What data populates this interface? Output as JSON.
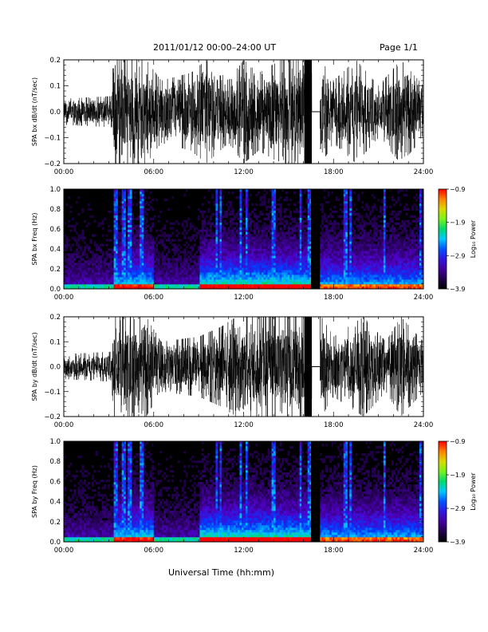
{
  "header": {
    "title": "2011/01/12  00:00–24:00 UT",
    "page": "Page 1/1"
  },
  "xlabel": "Universal Time (hh:mm)",
  "chart_data": [
    {
      "type": "line",
      "ylabel": "SPA bx dB/dt (nT/sec)",
      "xlim": [
        0,
        24
      ],
      "ylim": [
        -0.2,
        0.2
      ],
      "xticks": [
        "00:00",
        "06:00",
        "12:00",
        "18:00",
        "24:00"
      ],
      "yticks": [
        "−0.2",
        "−0.1",
        "0.0",
        "0.1",
        "0.2"
      ],
      "data_gap": [
        16.55,
        17.1
      ],
      "envelope": [
        {
          "x": 0,
          "amp": 0.05
        },
        {
          "x": 3.2,
          "amp": 0.06
        },
        {
          "x": 3.3,
          "amp": 0.2
        },
        {
          "x": 5.5,
          "amp": 0.2
        },
        {
          "x": 6.5,
          "amp": 0.12
        },
        {
          "x": 8.5,
          "amp": 0.15
        },
        {
          "x": 9.5,
          "amp": 0.2
        },
        {
          "x": 11.0,
          "amp": 0.12
        },
        {
          "x": 12.0,
          "amp": 0.2
        },
        {
          "x": 13.0,
          "amp": 0.15
        },
        {
          "x": 14.5,
          "amp": 0.2
        },
        {
          "x": 16.5,
          "amp": 0.2
        },
        {
          "x": 17.2,
          "amp": 0.2
        },
        {
          "x": 18.0,
          "amp": 0.12
        },
        {
          "x": 19.5,
          "amp": 0.2
        },
        {
          "x": 21.0,
          "amp": 0.1
        },
        {
          "x": 22.5,
          "amp": 0.2
        },
        {
          "x": 24.0,
          "amp": 0.1
        }
      ]
    },
    {
      "type": "heatmap",
      "ylabel": "SPA bx Freq (Hz)",
      "xlim": [
        0,
        24
      ],
      "ylim": [
        0.0,
        1.0
      ],
      "xticks": [
        "00:00",
        "06:00",
        "12:00",
        "18:00",
        "24:00"
      ],
      "yticks": [
        "0.0",
        "0.2",
        "0.4",
        "0.6",
        "0.8",
        "1.0"
      ],
      "colorbar": {
        "label": "Log₁₀ Power",
        "range": [
          -3.9,
          -0.9
        ],
        "ticks": [
          "−0.9",
          "−1.9",
          "−2.9",
          "−3.9"
        ]
      },
      "data_gap": [
        16.55,
        17.1
      ]
    },
    {
      "type": "line",
      "ylabel": "SPA by dB/dt (nT/sec)",
      "xlim": [
        0,
        24
      ],
      "ylim": [
        -0.2,
        0.2
      ],
      "xticks": [
        "00:00",
        "06:00",
        "12:00",
        "18:00",
        "24:00"
      ],
      "yticks": [
        "−0.2",
        "−0.1",
        "0.0",
        "0.1",
        "0.2"
      ],
      "data_gap": [
        16.55,
        17.1
      ],
      "envelope": [
        {
          "x": 0,
          "amp": 0.05
        },
        {
          "x": 3.2,
          "amp": 0.06
        },
        {
          "x": 3.3,
          "amp": 0.2
        },
        {
          "x": 5.5,
          "amp": 0.2
        },
        {
          "x": 6.5,
          "amp": 0.1
        },
        {
          "x": 9.0,
          "amp": 0.12
        },
        {
          "x": 10.5,
          "amp": 0.16
        },
        {
          "x": 11.5,
          "amp": 0.2
        },
        {
          "x": 13.5,
          "amp": 0.2
        },
        {
          "x": 16.5,
          "amp": 0.2
        },
        {
          "x": 17.2,
          "amp": 0.2
        },
        {
          "x": 18.0,
          "amp": 0.12
        },
        {
          "x": 20.0,
          "amp": 0.2
        },
        {
          "x": 21.5,
          "amp": 0.1
        },
        {
          "x": 22.5,
          "amp": 0.2
        },
        {
          "x": 24.0,
          "amp": 0.1
        }
      ]
    },
    {
      "type": "heatmap",
      "ylabel": "SPA by Freq (Hz)",
      "xlim": [
        0,
        24
      ],
      "ylim": [
        0.0,
        1.0
      ],
      "xticks": [
        "00:00",
        "06:00",
        "12:00",
        "18:00",
        "24:00"
      ],
      "yticks": [
        "0.0",
        "0.2",
        "0.4",
        "0.6",
        "0.8",
        "1.0"
      ],
      "colorbar": {
        "label": "Log₁₀ Power",
        "range": [
          -3.9,
          -0.9
        ],
        "ticks": [
          "−0.9",
          "−1.9",
          "−2.9",
          "−3.9"
        ]
      },
      "data_gap": [
        16.55,
        17.1
      ]
    }
  ]
}
